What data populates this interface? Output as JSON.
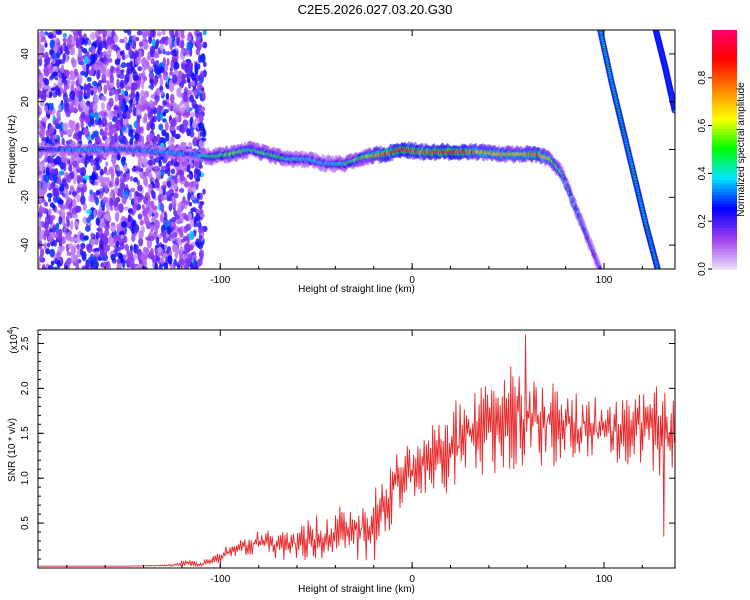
{
  "title": "C2E5.2026.027.03.20.G30",
  "chart_data": [
    {
      "type": "heatmap",
      "title": "C2E5.2026.027.03.20.G30",
      "xlabel": "Height of straight line (km)",
      "ylabel": "Frequency (Hz)",
      "xlim": [
        -195,
        137
      ],
      "ylim": [
        -50,
        50
      ],
      "x_ticks": [
        -100,
        0,
        100
      ],
      "x_tick_labels": [
        "-100",
        "0",
        "100"
      ],
      "y_ticks": [
        -40,
        -20,
        0,
        20,
        40
      ],
      "y_tick_labels": [
        "-40",
        "-20",
        "0",
        "20",
        "40"
      ],
      "colorbar": {
        "label": "Normalized spectral amplitude",
        "range": [
          0,
          1
        ],
        "ticks": [
          0,
          0.2,
          0.4,
          0.6,
          0.8
        ],
        "tick_labels": [
          "0.0",
          "0.2",
          "0.4",
          "0.6",
          "0.8"
        ],
        "colors": [
          "#e8d6f7",
          "#9b3cf0",
          "#0000ff",
          "#00e5ff",
          "#00ff00",
          "#ffff00",
          "#ff7f00",
          "#ff0000",
          "#ff0070"
        ]
      },
      "noise_region_x": [
        -195,
        -108
      ],
      "main_trace": {
        "x": [
          -195,
          -170,
          -150,
          -130,
          -115,
          -105,
          -95,
          -85,
          -75,
          -65,
          -55,
          -45,
          -35,
          -25,
          -15,
          -5,
          5,
          15,
          25,
          35,
          45,
          55,
          65,
          72,
          78,
          83,
          88,
          93,
          98
        ],
        "y": [
          0,
          0,
          0,
          -1,
          -2,
          -3,
          -2,
          0,
          -2,
          -4,
          -4,
          -6,
          -6,
          -3,
          -2,
          0,
          -1,
          -1,
          -1,
          -1,
          -2,
          -2,
          -2,
          -4,
          -10,
          -20,
          -30,
          -40,
          -50
        ],
        "amplitude": [
          0.25,
          0.35,
          0.3,
          0.35,
          0.3,
          0.45,
          0.55,
          0.45,
          0.5,
          0.45,
          0.4,
          0.35,
          0.45,
          0.6,
          0.8,
          0.9,
          0.85,
          0.85,
          0.95,
          0.7,
          0.7,
          0.65,
          0.8,
          0.6,
          0.45,
          0.35,
          0.3,
          0.25,
          0.2
        ]
      },
      "aliased_traces": [
        {
          "x": [
            98,
            104,
            110,
            116,
            122,
            128
          ],
          "y": [
            50,
            28,
            8,
            -12,
            -32,
            -50
          ]
        },
        {
          "x": [
            127,
            132,
            137
          ],
          "y": [
            50,
            34,
            16
          ]
        }
      ]
    },
    {
      "type": "line",
      "xlabel": "Height of straight line (km)",
      "ylabel": "SNR (10 * v/v)",
      "y_multiplier": "(x10",
      "y_multiplier_exp": "4",
      "y_multiplier_close": ")",
      "xlim": [
        -195,
        137
      ],
      "ylim": [
        0,
        2.65
      ],
      "x_ticks": [
        -100,
        0,
        100
      ],
      "x_tick_labels": [
        "-100",
        "0",
        "100"
      ],
      "y_ticks": [
        0.5,
        1.0,
        1.5,
        2.0,
        2.5
      ],
      "y_tick_labels": [
        "0.5",
        "1.0",
        "1.5",
        "2.0",
        "2.5"
      ],
      "line_color": "#e8282a",
      "series": [
        {
          "name": "SNR",
          "x": [
            -195,
            -150,
            -125,
            -118,
            -110,
            -100,
            -90,
            -80,
            -70,
            -60,
            -50,
            -40,
            -30,
            -20,
            -10,
            0,
            10,
            20,
            30,
            40,
            50,
            60,
            70,
            80,
            90,
            100,
            110,
            120,
            130,
            137
          ],
          "y": [
            0.02,
            0.02,
            0.03,
            0.06,
            0.04,
            0.12,
            0.22,
            0.28,
            0.25,
            0.28,
            0.35,
            0.38,
            0.42,
            0.5,
            0.9,
            1.05,
            1.15,
            1.35,
            1.5,
            1.6,
            1.65,
            1.7,
            1.6,
            1.6,
            1.55,
            1.55,
            1.5,
            1.55,
            1.55,
            1.5
          ],
          "spread": [
            0.0,
            0.0,
            0.01,
            0.04,
            0.03,
            0.08,
            0.12,
            0.15,
            0.18,
            0.2,
            0.25,
            0.3,
            0.35,
            0.45,
            0.5,
            0.4,
            0.45,
            0.5,
            0.55,
            0.6,
            0.65,
            0.55,
            0.5,
            0.45,
            0.45,
            0.4,
            0.4,
            0.5,
            0.6,
            0.5
          ]
        }
      ]
    }
  ]
}
